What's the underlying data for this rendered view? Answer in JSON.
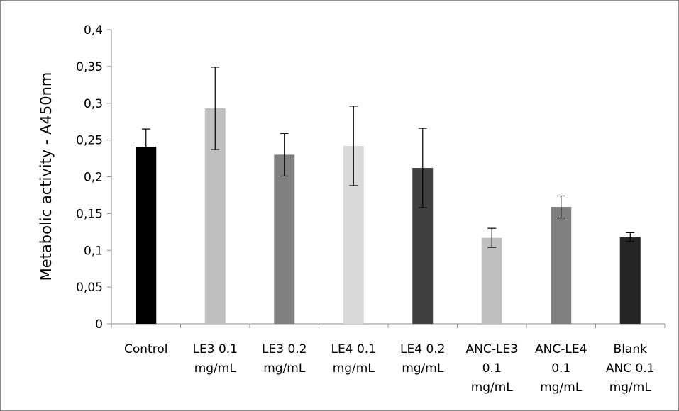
{
  "chart_data": {
    "type": "bar",
    "title": "",
    "xlabel": "",
    "ylabel": "Metabolic activity - A450nm",
    "ylim": [
      0,
      0.4
    ],
    "yticks": [
      {
        "value": 0,
        "label": "0"
      },
      {
        "value": 0.05,
        "label": "0,05"
      },
      {
        "value": 0.1,
        "label": "0,1"
      },
      {
        "value": 0.15,
        "label": "0,15"
      },
      {
        "value": 0.2,
        "label": "0,2"
      },
      {
        "value": 0.25,
        "label": "0,25"
      },
      {
        "value": 0.3,
        "label": "0,3"
      },
      {
        "value": 0.35,
        "label": "0,35"
      },
      {
        "value": 0.4,
        "label": "0,4"
      }
    ],
    "grid": false,
    "legend": "none",
    "categories": [
      [
        "Control"
      ],
      [
        "LE3 0.1",
        "mg/mL"
      ],
      [
        "LE3 0.2",
        "mg/mL"
      ],
      [
        "LE4 0.1",
        "mg/mL"
      ],
      [
        "LE4 0.2",
        "mg/mL"
      ],
      [
        "ANC-LE3",
        "0.1",
        "mg/mL"
      ],
      [
        "ANC-LE4",
        "0.1",
        "mg/mL"
      ],
      [
        "Blank",
        "ANC 0.1",
        "mg/mL"
      ]
    ],
    "values": [
      0.241,
      0.293,
      0.23,
      0.242,
      0.212,
      0.117,
      0.159,
      0.118
    ],
    "error_high": [
      0.265,
      0.349,
      0.259,
      0.296,
      0.266,
      0.13,
      0.174,
      0.124
    ],
    "error_low": [
      0.217,
      0.237,
      0.201,
      0.188,
      0.158,
      0.104,
      0.144,
      0.112
    ],
    "colors": [
      "#000000",
      "#bfbfbf",
      "#808080",
      "#d9d9d9",
      "#404040",
      "#bfbfbf",
      "#808080",
      "#262626"
    ]
  }
}
